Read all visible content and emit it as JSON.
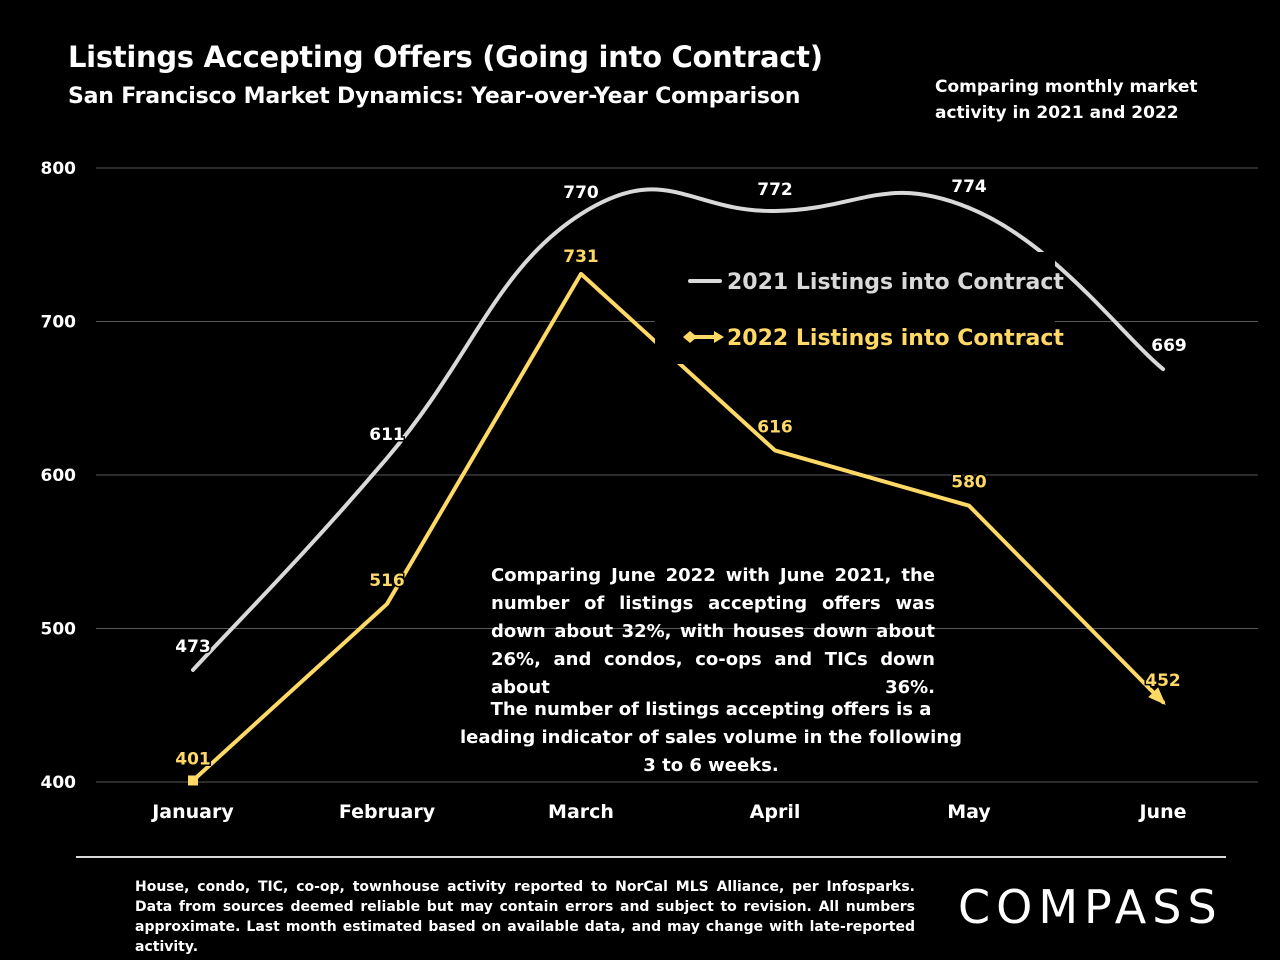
{
  "header": {
    "title": "Listings Accepting Offers (Going into Contract)",
    "subtitle": "San Francisco Market Dynamics: Year-over-Year Comparison",
    "side_note": "Comparing monthly market activity in 2021 and 2022"
  },
  "chart_data": {
    "type": "line",
    "categories": [
      "January",
      "February",
      "March",
      "April",
      "May",
      "June"
    ],
    "series": [
      {
        "name": "2021 Listings into Contract",
        "values": [
          473,
          611,
          770,
          772,
          774,
          669
        ],
        "color": "#d9d9d9",
        "smooth": true
      },
      {
        "name": "2022 Listings into Contract",
        "values": [
          401,
          516,
          731,
          616,
          580,
          452
        ],
        "color": "#ffd966",
        "smooth": false
      }
    ],
    "ylim": [
      400,
      800
    ],
    "yticks": [
      400,
      500,
      600,
      700,
      800
    ],
    "grid": true,
    "legend_position": "top-right",
    "xlabel": "",
    "ylabel": ""
  },
  "annotations": {
    "summary": "Comparing June 2022 with June 2021, the number of listings accepting offers was down about 32%, with houses down about 26%, and condos, co-ops and TICs down about 36%.",
    "note": "The number of listings accepting offers is a leading indicator of sales volume in the following 3 to 6 weeks."
  },
  "footer": {
    "source": "House, condo, TIC, co-op, townhouse activity reported to NorCal MLS Alliance, per Infosparks. Data from sources deemed reliable but may contain errors and subject to revision. All numbers approximate. Last month estimated based on available data, and may change with late-reported activity.",
    "logo_text": "COMPASS"
  }
}
